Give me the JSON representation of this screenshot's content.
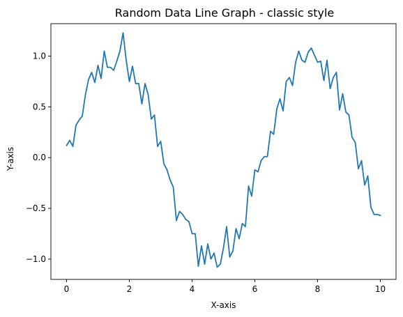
{
  "chart_data": {
    "type": "line",
    "title": "Random Data Line Graph - classic style",
    "xlabel": "X-axis",
    "ylabel": "Y-axis",
    "xlim": [
      -0.5,
      10.5
    ],
    "ylim": [
      -1.2,
      1.32
    ],
    "grid": false,
    "x_ticks": [
      0,
      2,
      4,
      6,
      8,
      10
    ],
    "x_tick_labels": [
      "0",
      "2",
      "4",
      "6",
      "8",
      "10"
    ],
    "y_ticks": [
      -1.0,
      -0.5,
      0.0,
      0.5,
      1.0
    ],
    "y_tick_labels": [
      "−1.0",
      "−0.5",
      "0.0",
      "0.5",
      "1.0"
    ],
    "series": [
      {
        "color": "#1f77b4",
        "x": [
          0.0,
          0.1,
          0.2,
          0.3,
          0.4,
          0.5,
          0.6,
          0.7,
          0.8,
          0.9,
          1.0,
          1.1,
          1.2,
          1.3,
          1.4,
          1.5,
          1.6,
          1.7,
          1.8,
          1.9,
          2.0,
          2.1,
          2.2,
          2.3,
          2.4,
          2.5,
          2.6,
          2.7,
          2.8,
          2.9,
          3.0,
          3.1,
          3.2,
          3.3,
          3.4,
          3.5,
          3.6,
          3.7,
          3.8,
          3.9,
          4.0,
          4.1,
          4.2,
          4.3,
          4.4,
          4.5,
          4.6,
          4.7,
          4.8,
          4.9,
          5.0,
          5.1,
          5.2,
          5.3,
          5.4,
          5.5,
          5.6,
          5.7,
          5.8,
          5.9,
          6.0,
          6.1,
          6.2,
          6.3,
          6.4,
          6.5,
          6.6,
          6.7,
          6.8,
          6.9,
          7.0,
          7.1,
          7.2,
          7.3,
          7.4,
          7.5,
          7.6,
          7.7,
          7.8,
          7.9,
          8.0,
          8.1,
          8.2,
          8.3,
          8.4,
          8.5,
          8.6,
          8.7,
          8.8,
          8.9,
          9.0,
          9.1,
          9.2,
          9.3,
          9.4,
          9.5,
          9.6,
          9.7,
          9.8,
          9.9,
          10.0
        ],
        "y": [
          0.12,
          0.17,
          0.11,
          0.32,
          0.37,
          0.41,
          0.62,
          0.77,
          0.84,
          0.74,
          0.91,
          0.78,
          1.05,
          0.89,
          0.89,
          0.86,
          0.95,
          1.05,
          1.23,
          0.96,
          0.75,
          0.9,
          0.73,
          0.73,
          0.53,
          0.73,
          0.62,
          0.38,
          0.42,
          0.11,
          0.16,
          -0.06,
          -0.12,
          -0.22,
          -0.29,
          -0.62,
          -0.53,
          -0.56,
          -0.61,
          -0.63,
          -0.75,
          -0.75,
          -1.07,
          -0.87,
          -1.05,
          -0.85,
          -1.0,
          -0.94,
          -1.08,
          -1.05,
          -0.89,
          -0.68,
          -0.98,
          -0.92,
          -0.7,
          -0.8,
          -0.65,
          -0.68,
          -0.28,
          -0.38,
          -0.12,
          -0.14,
          -0.03,
          0.01,
          0.01,
          0.26,
          0.23,
          0.48,
          0.58,
          0.46,
          0.75,
          0.79,
          0.71,
          0.94,
          1.05,
          0.96,
          0.94,
          1.04,
          1.08,
          1.01,
          0.94,
          0.95,
          0.76,
          0.96,
          0.68,
          0.79,
          0.84,
          0.47,
          0.63,
          0.45,
          0.42,
          0.2,
          0.15,
          -0.11,
          -0.03,
          -0.27,
          -0.18,
          -0.49,
          -0.56,
          -0.56,
          -0.57
        ]
      }
    ]
  }
}
